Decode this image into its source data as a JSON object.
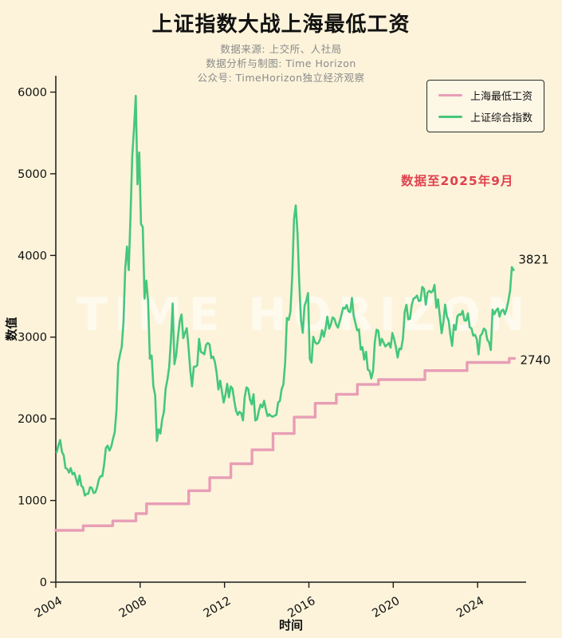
{
  "page": {
    "background": "#fcf3da"
  },
  "header": {
    "title": "上证指数大战上海最低工资",
    "source": "数据来源: 上交所、人社局",
    "credit": "数据分析与制图: Time Horizon",
    "account": "公众号: TimeHorizon独立经济观察"
  },
  "watermark": "TIME HORIZON",
  "annotation": {
    "text": "数据至2025年9月",
    "color": "#e0414e"
  },
  "legend": {
    "position": "upper right",
    "items": [
      {
        "label": "上海最低工资",
        "color": "#e89db6"
      },
      {
        "label": "上证综合指数",
        "color": "#45c77c"
      }
    ]
  },
  "chart_data": {
    "type": "line",
    "title": "上证指数大战上海最低工资",
    "xlabel": "时间",
    "ylabel": "数值",
    "xlim": [
      2004,
      2026.3
    ],
    "ylim": [
      0,
      6200
    ],
    "x_ticks": [
      2004,
      2008,
      2012,
      2016,
      2020,
      2024
    ],
    "y_ticks": [
      0,
      1000,
      2000,
      3000,
      4000,
      5000,
      6000
    ],
    "grid": false,
    "legend_position": "upper right",
    "series": [
      {
        "name": "上海最低工资",
        "style": "step",
        "color": "#e89db6",
        "end_label": "2740",
        "points": [
          [
            2004.0,
            635
          ],
          [
            2005.3,
            690
          ],
          [
            2006.7,
            750
          ],
          [
            2007.8,
            840
          ],
          [
            2008.3,
            960
          ],
          [
            2010.3,
            1120
          ],
          [
            2011.3,
            1280
          ],
          [
            2012.3,
            1450
          ],
          [
            2013.3,
            1620
          ],
          [
            2014.3,
            1820
          ],
          [
            2015.3,
            2020
          ],
          [
            2016.3,
            2190
          ],
          [
            2017.3,
            2300
          ],
          [
            2018.3,
            2420
          ],
          [
            2019.3,
            2480
          ],
          [
            2021.5,
            2590
          ],
          [
            2023.5,
            2690
          ],
          [
            2025.5,
            2740
          ],
          [
            2025.75,
            2740
          ]
        ]
      },
      {
        "name": "上证综合指数",
        "style": "line",
        "color": "#45c77c",
        "end_label": "3821",
        "x_start": 2004.042,
        "x_step": 0.083333,
        "values": [
          1590,
          1675,
          1741,
          1595,
          1555,
          1399,
          1386,
          1342,
          1396,
          1320,
          1340,
          1266,
          1191,
          1306,
          1181,
          1159,
          1060,
          1081,
          1083,
          1163,
          1155,
          1092,
          1099,
          1161,
          1258,
          1299,
          1298,
          1440,
          1641,
          1672,
          1612,
          1658,
          1752,
          1837,
          2099,
          2675,
          2786,
          2881,
          3183,
          3841,
          4109,
          3821,
          4471,
          5218,
          5552,
          5955,
          4871,
          5262,
          4383,
          4348,
          3472,
          3693,
          3433,
          2736,
          2775,
          2397,
          2294,
          1729,
          1871,
          1821,
          1991,
          2083,
          2373,
          2478,
          2632,
          2959,
          3412,
          2668,
          2779,
          2995,
          3195,
          3277,
          2989,
          3052,
          3109,
          2871,
          2592,
          2398,
          2637,
          2639,
          2656,
          2979,
          2820,
          2808,
          2790,
          2905,
          2928,
          2911,
          2743,
          2762,
          2701,
          2567,
          2359,
          2468,
          2333,
          2199,
          2293,
          2428,
          2262,
          2396,
          2372,
          2225,
          2103,
          2047,
          2086,
          2068,
          1980,
          2269,
          2385,
          2365,
          2237,
          2177,
          2301,
          1979,
          1994,
          2098,
          2175,
          2141,
          2221,
          2116,
          2033,
          2056,
          2033,
          2026,
          2039,
          2048,
          2202,
          2217,
          2364,
          2420,
          2683,
          3235,
          3210,
          3310,
          3748,
          4442,
          4612,
          4277,
          3664,
          3206,
          3053,
          3383,
          3445,
          3539,
          2738,
          2688,
          3004,
          2938,
          2917,
          2930,
          2979,
          3085,
          3005,
          3100,
          3250,
          3104,
          3159,
          3242,
          3223,
          3155,
          3117,
          3192,
          3273,
          3361,
          3349,
          3393,
          3317,
          3307,
          3481,
          3259,
          3169,
          3082,
          3095,
          2847,
          2876,
          2725,
          2821,
          2603,
          2588,
          2494,
          2585,
          2941,
          3091,
          3078,
          2899,
          2979,
          2933,
          2886,
          2905,
          2929,
          2872,
          3050,
          2977,
          2880,
          2750,
          2860,
          2852,
          2985,
          3310,
          3396,
          3218,
          3225,
          3392,
          3473,
          3483,
          3509,
          3442,
          3447,
          3615,
          3591,
          3397,
          3544,
          3568,
          3547,
          3564,
          3640,
          3361,
          3462,
          3252,
          3047,
          3186,
          3399,
          3253,
          3202,
          3024,
          2893,
          3151,
          3089,
          3255,
          3280,
          3273,
          3323,
          3205,
          3202,
          3291,
          3120,
          3110,
          3019,
          3030,
          2975,
          2789,
          3015,
          3041,
          3105,
          3087,
          2967,
          2938,
          2842,
          3336,
          3280,
          3326,
          3352,
          3251,
          3321,
          3336,
          3279,
          3347,
          3444,
          3573,
          3858,
          3821
        ]
      }
    ],
    "annotations": [
      {
        "text": "数据至2025年9月",
        "color": "#e0414e"
      },
      {
        "text": "3821",
        "series": "上证综合指数"
      },
      {
        "text": "2740",
        "series": "上海最低工资"
      }
    ]
  }
}
